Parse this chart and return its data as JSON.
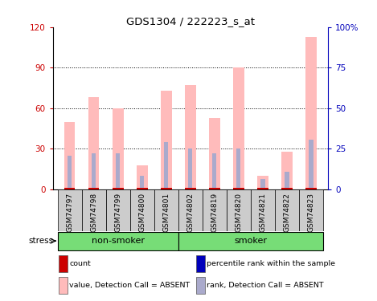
{
  "title": "GDS1304 / 222223_s_at",
  "samples": [
    "GSM74797",
    "GSM74798",
    "GSM74799",
    "GSM74800",
    "GSM74801",
    "GSM74802",
    "GSM74819",
    "GSM74820",
    "GSM74821",
    "GSM74822",
    "GSM74823"
  ],
  "pink_values": [
    50,
    68,
    60,
    18,
    73,
    77,
    53,
    90,
    10,
    28,
    113
  ],
  "blue_values": [
    25,
    27,
    27,
    10,
    35,
    30,
    27,
    30,
    8,
    13,
    37
  ],
  "ylim_left": [
    0,
    120
  ],
  "ylim_right": [
    0,
    100
  ],
  "yticks_left": [
    0,
    30,
    60,
    90,
    120
  ],
  "yticks_right": [
    0,
    25,
    50,
    75,
    100
  ],
  "yticklabels_right": [
    "0",
    "25",
    "50",
    "75",
    "100%"
  ],
  "non_smoker_indices": [
    0,
    1,
    2,
    3,
    4
  ],
  "smoker_indices": [
    5,
    6,
    7,
    8,
    9,
    10
  ],
  "group_labels": [
    "non-smoker",
    "smoker"
  ],
  "stress_label": "stress",
  "legend_items": [
    {
      "label": "count",
      "color": "#cc0000"
    },
    {
      "label": "percentile rank within the sample",
      "color": "#0000bb"
    },
    {
      "label": "value, Detection Call = ABSENT",
      "color": "#ffbbbb"
    },
    {
      "label": "rank, Detection Call = ABSENT",
      "color": "#aaaacc"
    }
  ],
  "pink_color": "#ffbbbb",
  "blue_color": "#aaaacc",
  "red_color": "#cc0000",
  "dark_blue_color": "#0000bb",
  "bg_color": "#ffffff",
  "axis_left_color": "#cc0000",
  "axis_right_color": "#0000bb",
  "group_bar_color": "#77dd77",
  "tick_area_color": "#cccccc"
}
